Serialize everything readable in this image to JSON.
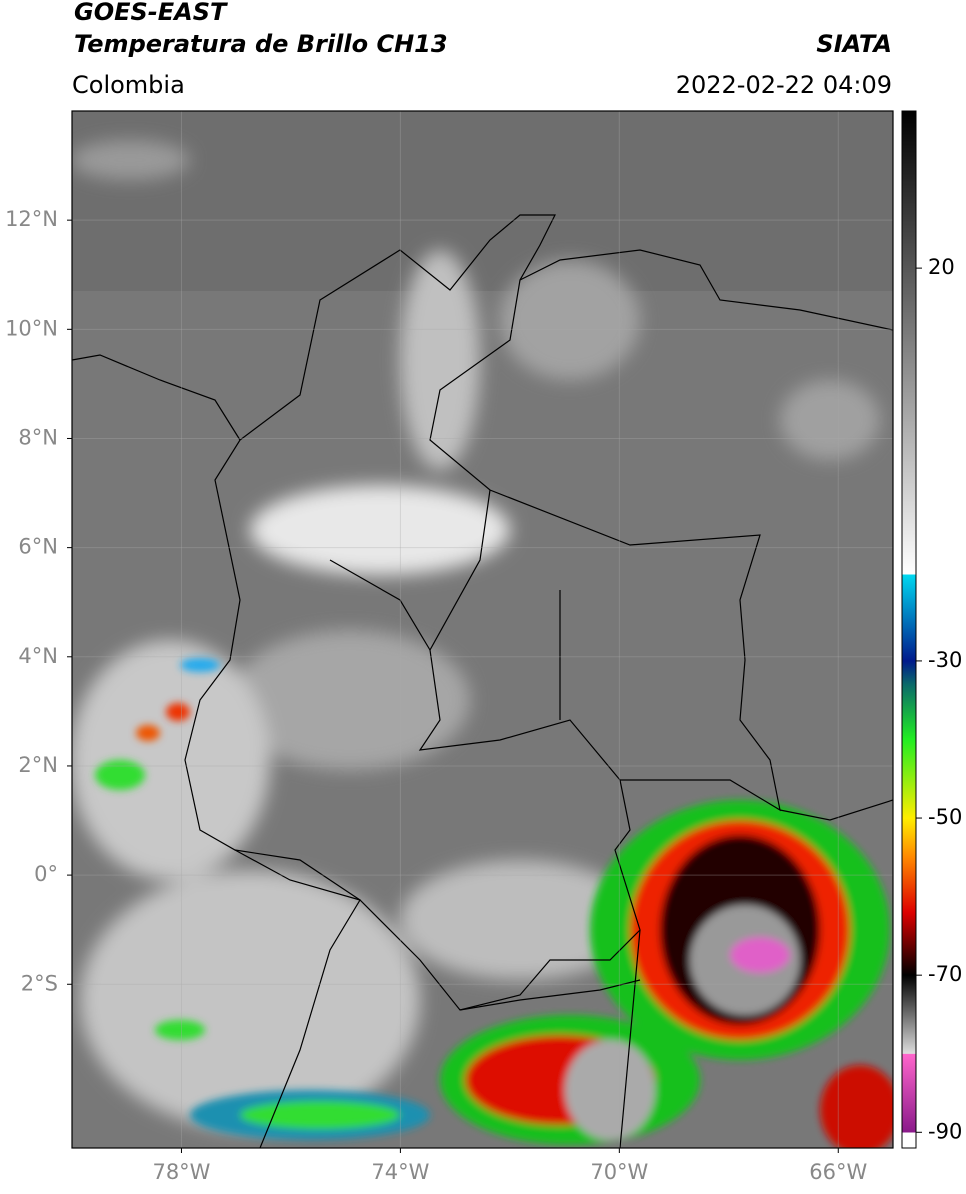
{
  "header": {
    "title": "GOES-EAST",
    "subtitle": "Temperatura de Brillo CH13",
    "source": "SIATA",
    "region": "Colombia",
    "datetime": "2022-02-22 04:09"
  },
  "map": {
    "xlim": [
      -80,
      -65
    ],
    "ylim": [
      -5,
      14
    ],
    "xticks": [
      {
        "value": -78,
        "label": "78°W"
      },
      {
        "value": -74,
        "label": "74°W"
      },
      {
        "value": -70,
        "label": "70°W"
      },
      {
        "value": -66,
        "label": "66°W"
      }
    ],
    "yticks": [
      {
        "value": 12,
        "label": "12°N"
      },
      {
        "value": 10,
        "label": "10°N"
      },
      {
        "value": 8,
        "label": "8°N"
      },
      {
        "value": 6,
        "label": "6°N"
      },
      {
        "value": 4,
        "label": "4°N"
      },
      {
        "value": 2,
        "label": "2°N"
      },
      {
        "value": 0,
        "label": "0°"
      },
      {
        "value": -2,
        "label": "2°S"
      }
    ],
    "grid": true
  },
  "colorbar": {
    "lim": [
      -92,
      40
    ],
    "ticks": [
      20,
      -30,
      -50,
      -70,
      -90
    ],
    "stops": [
      {
        "value": 40,
        "color": "#000000"
      },
      {
        "value": -19,
        "color": "#ffffff"
      },
      {
        "value": -19.01,
        "color": "#00d8f0"
      },
      {
        "value": -30,
        "color": "#001a8c"
      },
      {
        "value": -33,
        "color": "#0a6a6a"
      },
      {
        "value": -40,
        "color": "#22ee22"
      },
      {
        "value": -50,
        "color": "#ffee00"
      },
      {
        "value": -55,
        "color": "#ff8800"
      },
      {
        "value": -62,
        "color": "#dd0000"
      },
      {
        "value": -70,
        "color": "#000000"
      },
      {
        "value": -80,
        "color": "#dddddd"
      },
      {
        "value": -80.01,
        "color": "#ff66cc"
      },
      {
        "value": -90,
        "color": "#8a1a8a"
      },
      {
        "value": -90.01,
        "color": "#ffffff"
      }
    ]
  }
}
